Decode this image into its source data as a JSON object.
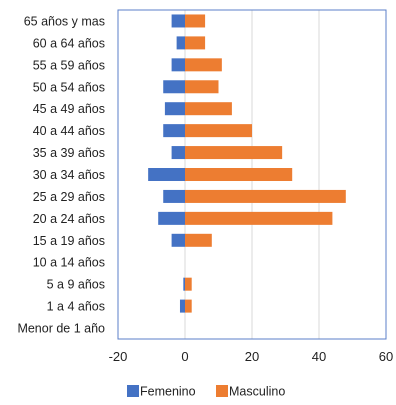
{
  "chart_data": {
    "type": "bar",
    "orientation": "horizontal",
    "categories": [
      "65 años y mas",
      "60 a 64 años",
      "55 a 59 años",
      "50 a 54 años",
      "45 a 49 años",
      "40 a 44 años",
      "35 a 39 años",
      "30 a 34 años",
      "25 a 29 años",
      "20 a 24 años",
      "15 a 19 años",
      "10 a 14 años",
      "5 a 9 años",
      "1 a 4 años",
      "Menor de 1 año"
    ],
    "series": [
      {
        "name": "Femenino",
        "color": "#4472C4",
        "values": [
          -4,
          -2.5,
          -4,
          -6.5,
          -6,
          -6.5,
          -4,
          -11,
          -6.5,
          -8,
          -4,
          0,
          -0.5,
          -1.5,
          0
        ]
      },
      {
        "name": "Masculino",
        "color": "#ED7D31",
        "values": [
          6,
          6,
          11,
          10,
          14,
          20,
          29,
          32,
          48,
          44,
          8,
          0,
          2,
          2,
          0
        ]
      }
    ],
    "xlim": [
      -20,
      60
    ],
    "xticks": [
      "-20",
      "0",
      "20",
      "40",
      "60"
    ],
    "grid": "vertical",
    "legend_position": "bottom",
    "title": "",
    "xlabel": "",
    "ylabel": ""
  }
}
